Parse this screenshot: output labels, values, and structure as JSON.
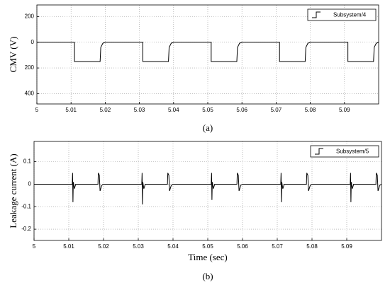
{
  "chart_data": [
    {
      "type": "line",
      "ylabel": "CMV (V)",
      "caption": "(a)",
      "xlim": [
        5,
        5.1
      ],
      "xticks": [
        5,
        5.01,
        5.02,
        5.03,
        5.04,
        5.05,
        5.06,
        5.07,
        5.08,
        5.09
      ],
      "ylim": [
        -480,
        290
      ],
      "yticks": [
        200,
        0,
        {
          "value": -200,
          "label": "200"
        },
        {
          "value": -400,
          "label": "400"
        }
      ],
      "grid": true,
      "legend": "upper right",
      "x": [
        5.0,
        5.011,
        5.011,
        5.0185,
        5.0187,
        5.0193,
        5.02,
        5.031,
        5.031,
        5.0385,
        5.0387,
        5.0393,
        5.04,
        5.051,
        5.051,
        5.0585,
        5.0587,
        5.0593,
        5.06,
        5.071,
        5.071,
        5.0785,
        5.0787,
        5.0793,
        5.08,
        5.091,
        5.091,
        5.0985,
        5.0987,
        5.0993,
        5.1
      ],
      "series": [
        {
          "name": "Subsystem/4",
          "color": "#000000",
          "values": [
            0,
            0,
            -150,
            -150,
            -40,
            -8,
            0,
            0,
            -150,
            -150,
            -40,
            -8,
            0,
            0,
            -150,
            -150,
            -40,
            -8,
            0,
            0,
            -150,
            -150,
            -40,
            -8,
            0,
            0,
            -150,
            -150,
            -40,
            -8,
            0
          ]
        }
      ]
    },
    {
      "type": "line",
      "ylabel": "Leakage current (A)",
      "xlabel": "Time (sec)",
      "caption": "(b)",
      "xlim": [
        5,
        5.1
      ],
      "xticks": [
        5,
        5.01,
        5.02,
        5.03,
        5.04,
        5.05,
        5.06,
        5.07,
        5.08,
        5.09
      ],
      "ylim": [
        -0.25,
        0.19
      ],
      "yticks": [
        0.1,
        0,
        -0.1,
        -0.2
      ],
      "grid": true,
      "legend": "upper right",
      "x": [
        5.0,
        5.011,
        5.0111,
        5.0112,
        5.0113,
        5.0116,
        5.012,
        5.0184,
        5.0185,
        5.0188,
        5.019,
        5.0195,
        5.02,
        5.031,
        5.0311,
        5.0312,
        5.0313,
        5.0316,
        5.032,
        5.0384,
        5.0385,
        5.0388,
        5.039,
        5.0395,
        5.04,
        5.051,
        5.0511,
        5.0512,
        5.0513,
        5.0516,
        5.052,
        5.0584,
        5.0585,
        5.0588,
        5.059,
        5.0595,
        5.06,
        5.071,
        5.0711,
        5.0712,
        5.0713,
        5.0716,
        5.072,
        5.0784,
        5.0785,
        5.0788,
        5.079,
        5.0795,
        5.08,
        5.091,
        5.0911,
        5.0912,
        5.0913,
        5.0916,
        5.092,
        5.0984,
        5.0985,
        5.0988,
        5.099,
        5.0995,
        5.1
      ],
      "series": [
        {
          "name": "Subsystem/5",
          "color": "#000000",
          "values": [
            0,
            0,
            0.05,
            -0.08,
            0.01,
            -0.02,
            0,
            0,
            0.05,
            0.04,
            -0.03,
            -0.005,
            0,
            0,
            0.05,
            -0.09,
            0.01,
            -0.02,
            0,
            0,
            0.05,
            0.04,
            -0.03,
            -0.005,
            0,
            0,
            0.05,
            -0.07,
            0.01,
            -0.02,
            0,
            0,
            0.05,
            0.04,
            -0.03,
            -0.005,
            0,
            0,
            0.05,
            -0.08,
            0.01,
            -0.02,
            0,
            0,
            0.05,
            0.04,
            -0.03,
            -0.005,
            0,
            0,
            0.05,
            -0.08,
            0.01,
            -0.02,
            0,
            0,
            0.05,
            0.04,
            -0.03,
            -0.005,
            0
          ]
        }
      ]
    }
  ]
}
